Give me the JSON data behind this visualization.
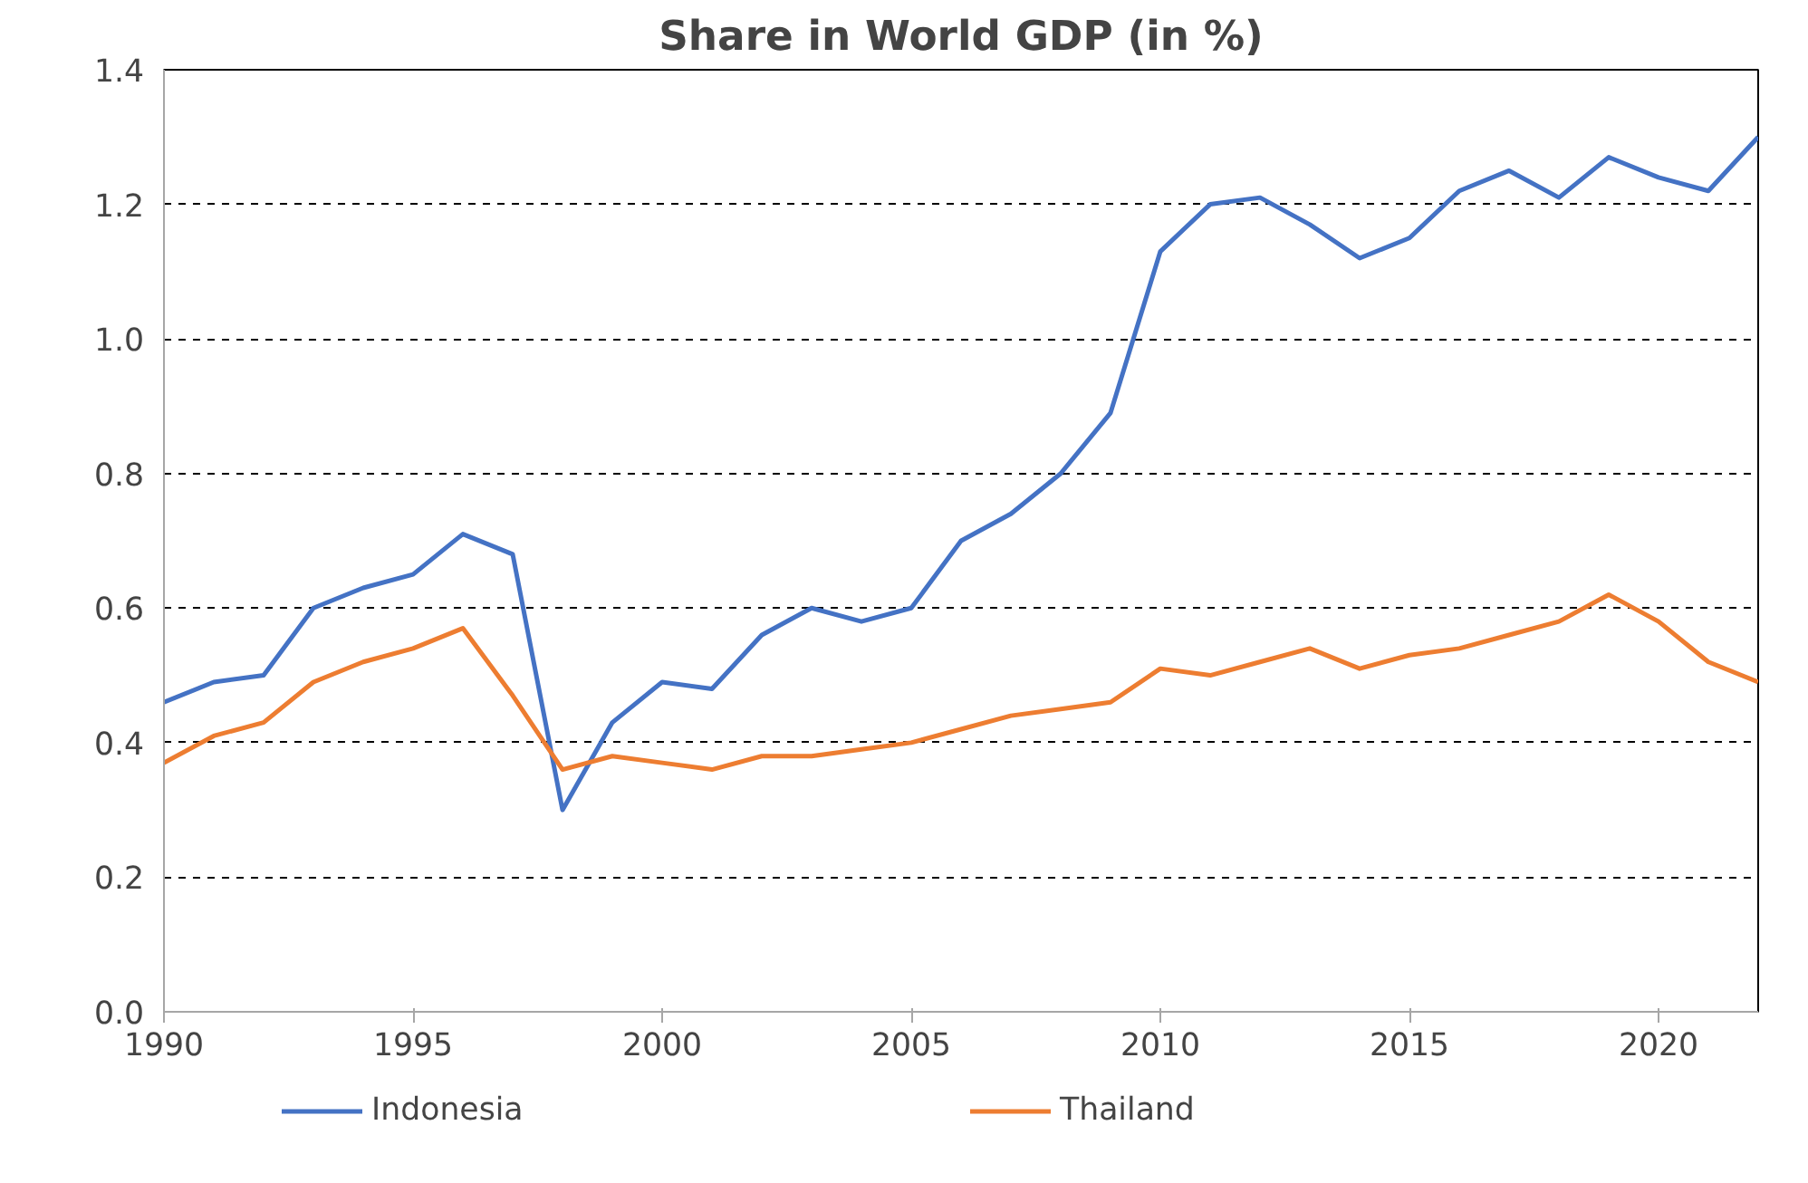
{
  "chart_data": {
    "type": "line",
    "title": "Share in World GDP (in %)",
    "x": [
      1990,
      1991,
      1992,
      1993,
      1994,
      1995,
      1996,
      1997,
      1998,
      1999,
      2000,
      2001,
      2002,
      2003,
      2004,
      2005,
      2006,
      2007,
      2008,
      2009,
      2010,
      2011,
      2012,
      2013,
      2014,
      2015,
      2016,
      2017,
      2018,
      2019,
      2020,
      2021,
      2022
    ],
    "series": [
      {
        "name": "Indonesia",
        "color": "#4472c4",
        "values": [
          0.46,
          0.49,
          0.5,
          0.6,
          0.63,
          0.65,
          0.71,
          0.68,
          0.3,
          0.43,
          0.49,
          0.48,
          0.56,
          0.6,
          0.58,
          0.6,
          0.7,
          0.74,
          0.8,
          0.89,
          1.13,
          1.2,
          1.21,
          1.17,
          1.12,
          1.15,
          1.22,
          1.25,
          1.21,
          1.27,
          1.24,
          1.22,
          1.3
        ]
      },
      {
        "name": "Thailand",
        "color": "#ed7d31",
        "values": [
          0.37,
          0.41,
          0.43,
          0.49,
          0.52,
          0.54,
          0.57,
          0.47,
          0.36,
          0.38,
          0.37,
          0.36,
          0.38,
          0.38,
          0.39,
          0.4,
          0.42,
          0.44,
          0.45,
          0.46,
          0.51,
          0.5,
          0.52,
          0.54,
          0.51,
          0.53,
          0.54,
          0.56,
          0.58,
          0.62,
          0.58,
          0.52,
          0.49
        ]
      }
    ],
    "xlim": [
      1990,
      2022
    ],
    "xticks": [
      1990,
      1995,
      2000,
      2005,
      2010,
      2015,
      2020
    ],
    "ylim": [
      0,
      1.4
    ],
    "yticks": [
      {
        "value": 0,
        "label": "0.0"
      },
      {
        "value": 0.2,
        "label": "0.2"
      },
      {
        "value": 0.4,
        "label": "0.4"
      },
      {
        "value": 0.6,
        "label": "0.6"
      },
      {
        "value": 0.8,
        "label": "0.8"
      },
      {
        "value": 1.0,
        "label": "1.0"
      },
      {
        "value": 1.2,
        "label": "1.2"
      },
      {
        "value": 1.4,
        "label": "1.4"
      }
    ],
    "grid": "y",
    "legend": "bottom",
    "line_style": "solid",
    "marker": "none"
  }
}
